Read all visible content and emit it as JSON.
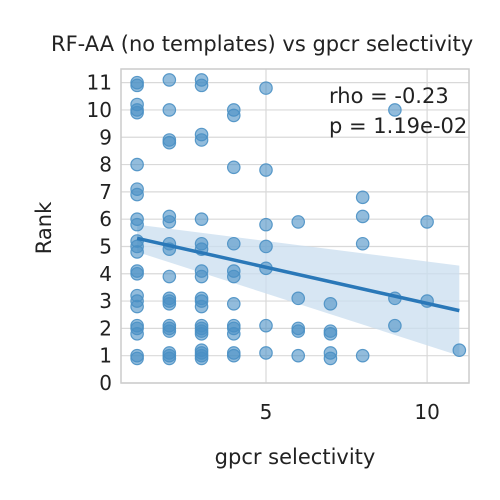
{
  "chart_data": {
    "type": "scatter",
    "title": "RF-AA (no templates) vs gpcr selectivity",
    "xlabel": "gpcr selectivity",
    "ylabel": "Rank",
    "xlim": [
      0.5,
      11.3
    ],
    "ylim": [
      0,
      11.5
    ],
    "x_ticks": [
      5,
      10
    ],
    "y_ticks": [
      0,
      1,
      2,
      3,
      4,
      5,
      6,
      7,
      8,
      9,
      10,
      11
    ],
    "grid": true,
    "annotations": [
      "rho = -0.23",
      "p = 1.19e-02"
    ],
    "colors": {
      "point": "#4a90c4",
      "line": "#2a78b8",
      "band": "#c9ddef"
    },
    "regression": {
      "x": [
        1,
        11
      ],
      "y": [
        5.3,
        2.65
      ],
      "ci_lower": [
        4.8,
        1.0
      ],
      "ci_upper": [
        5.8,
        4.3
      ]
    },
    "points": [
      [
        1,
        11
      ],
      [
        1,
        10.9
      ],
      [
        1,
        10.2
      ],
      [
        1,
        10
      ],
      [
        1,
        9.9
      ],
      [
        1,
        8
      ],
      [
        1,
        7.1
      ],
      [
        1,
        6.9
      ],
      [
        1,
        6
      ],
      [
        1,
        5.8
      ],
      [
        1,
        5.2
      ],
      [
        1,
        5
      ],
      [
        1,
        4.8
      ],
      [
        1,
        4.1
      ],
      [
        1,
        4
      ],
      [
        1,
        3.2
      ],
      [
        1,
        3
      ],
      [
        1,
        2.8
      ],
      [
        1,
        2.1
      ],
      [
        1,
        2
      ],
      [
        1,
        1.8
      ],
      [
        1,
        1
      ],
      [
        1,
        0.9
      ],
      [
        2,
        11.1
      ],
      [
        2,
        10
      ],
      [
        2,
        8.9
      ],
      [
        2,
        8.8
      ],
      [
        2,
        6.1
      ],
      [
        2,
        5.9
      ],
      [
        2,
        5.1
      ],
      [
        2,
        4.9
      ],
      [
        2,
        3.9
      ],
      [
        2,
        3.1
      ],
      [
        2,
        3
      ],
      [
        2,
        2.9
      ],
      [
        2,
        2.1
      ],
      [
        2,
        2
      ],
      [
        2,
        1.9
      ],
      [
        2,
        1.1
      ],
      [
        2,
        1
      ],
      [
        2,
        0.9
      ],
      [
        3,
        11.1
      ],
      [
        3,
        10.9
      ],
      [
        3,
        9.1
      ],
      [
        3,
        8.9
      ],
      [
        3,
        6
      ],
      [
        3,
        5.1
      ],
      [
        3,
        4.9
      ],
      [
        3,
        4.1
      ],
      [
        3,
        3.9
      ],
      [
        3,
        3.1
      ],
      [
        3,
        3
      ],
      [
        3,
        2.8
      ],
      [
        3,
        2.1
      ],
      [
        3,
        2
      ],
      [
        3,
        1.9
      ],
      [
        3,
        1.8
      ],
      [
        3,
        1.2
      ],
      [
        3,
        1.1
      ],
      [
        3,
        1
      ],
      [
        3,
        0.9
      ],
      [
        4,
        10
      ],
      [
        4,
        9.8
      ],
      [
        4,
        7.9
      ],
      [
        4,
        5.1
      ],
      [
        4,
        4.1
      ],
      [
        4,
        3.9
      ],
      [
        4,
        2.9
      ],
      [
        4,
        2.1
      ],
      [
        4,
        2
      ],
      [
        4,
        1.8
      ],
      [
        4,
        1.1
      ],
      [
        4,
        1
      ],
      [
        5,
        10.8
      ],
      [
        5,
        7.8
      ],
      [
        5,
        5.8
      ],
      [
        5,
        5
      ],
      [
        5,
        4.2
      ],
      [
        5,
        2.1
      ],
      [
        5,
        1.1
      ],
      [
        6,
        5.9
      ],
      [
        6,
        3.1
      ],
      [
        6,
        2
      ],
      [
        6,
        1.9
      ],
      [
        6,
        1
      ],
      [
        7,
        2.9
      ],
      [
        7,
        1.9
      ],
      [
        7,
        1.8
      ],
      [
        7,
        1.1
      ],
      [
        7,
        0.9
      ],
      [
        8,
        6.8
      ],
      [
        8,
        6.1
      ],
      [
        8,
        5.1
      ],
      [
        8,
        1
      ],
      [
        9,
        10
      ],
      [
        9,
        3.1
      ],
      [
        9,
        2.1
      ],
      [
        10,
        5.9
      ],
      [
        10,
        3
      ],
      [
        11,
        1.2
      ]
    ]
  }
}
